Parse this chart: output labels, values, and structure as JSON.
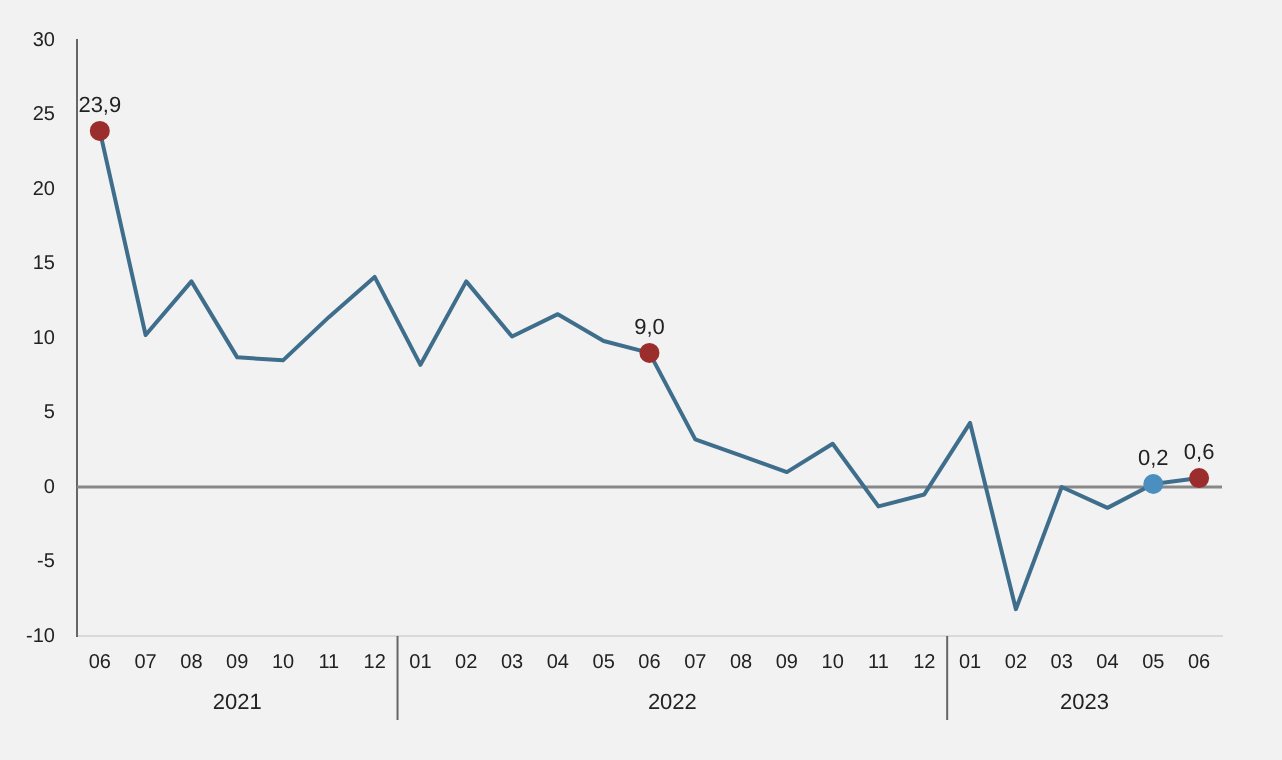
{
  "chart_data": {
    "type": "line",
    "categories": [
      "06",
      "07",
      "08",
      "09",
      "10",
      "11",
      "12",
      "01",
      "02",
      "03",
      "04",
      "05",
      "06",
      "07",
      "08",
      "09",
      "10",
      "11",
      "12",
      "01",
      "02",
      "03",
      "04",
      "05",
      "06"
    ],
    "values": [
      23.9,
      10.2,
      13.8,
      8.7,
      8.5,
      11.4,
      14.1,
      8.2,
      13.8,
      10.1,
      11.6,
      9.8,
      9.0,
      3.2,
      2.1,
      1.0,
      2.9,
      -1.3,
      -0.5,
      4.3,
      -8.2,
      0.0,
      -1.4,
      0.2,
      0.6
    ],
    "value_labels": [
      "23,9",
      null,
      null,
      null,
      null,
      null,
      null,
      null,
      null,
      null,
      null,
      null,
      "9,0",
      null,
      null,
      null,
      null,
      null,
      null,
      null,
      null,
      null,
      null,
      "0,2",
      "0,6"
    ],
    "color": "#3f6e8c",
    "colors": [
      "#9b2d2d",
      "#3f6e8c",
      "#3f6e8c",
      "#3f6e8c",
      "#3f6e8c",
      "#3f6e8c",
      "#3f6e8c",
      "#3f6e8c",
      "#3f6e8c",
      "#3f6e8c",
      "#3f6e8c",
      "#3f6e8c",
      "#9b2d2d",
      "#3f6e8c",
      "#3f6e8c",
      "#3f6e8c",
      "#3f6e8c",
      "#3f6e8c",
      "#3f6e8c",
      "#3f6e8c",
      "#3f6e8c",
      "#3f6e8c",
      "#3f6e8c",
      "#4a8fc0",
      "#9b2d2d"
    ],
    "ylim": [
      -10,
      30
    ],
    "yticks": [
      -10,
      -5,
      0,
      5,
      10,
      15,
      20,
      25,
      30
    ],
    "annotations": [
      "2021",
      "2022",
      "2023"
    ],
    "ref_lines": [
      {
        "axis": "y",
        "value": 0,
        "color": "#888888"
      }
    ],
    "grid": false,
    "legend": false,
    "line_style": "solid"
  }
}
